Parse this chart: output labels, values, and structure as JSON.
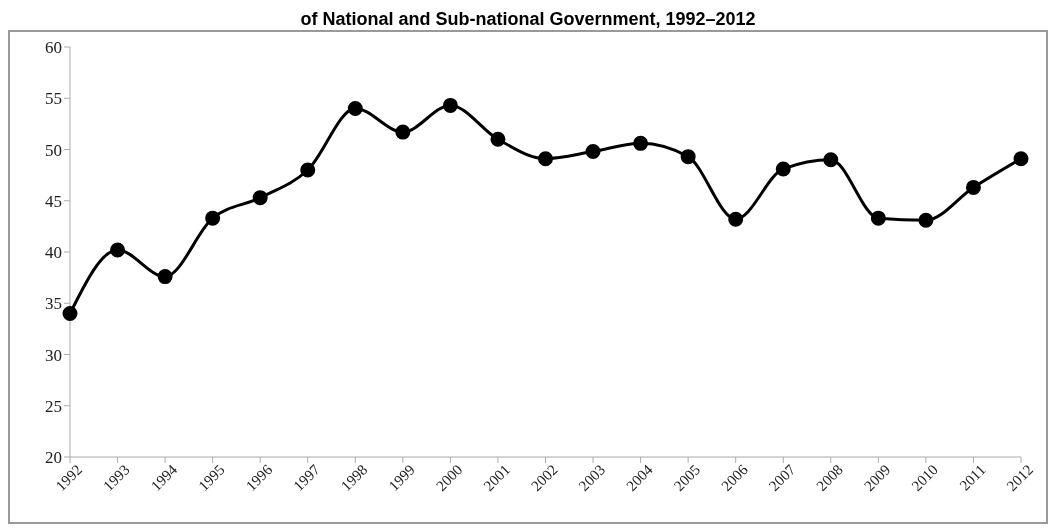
{
  "chart_data": {
    "type": "line",
    "title": "of National and Sub-national Government, 1992–2012",
    "categories": [
      "1992",
      "1993",
      "1994",
      "1995",
      "1996",
      "1997",
      "1998",
      "1999",
      "2000",
      "2001",
      "2002",
      "2003",
      "2004",
      "2005",
      "2006",
      "2007",
      "2008",
      "2009",
      "2010",
      "2011",
      "2012"
    ],
    "series": [
      {
        "color": "#000000",
        "values": [
          34.0,
          40.2,
          37.6,
          43.3,
          45.3,
          48.0,
          54.0,
          51.7,
          54.3,
          51.0,
          49.1,
          49.8,
          50.6,
          49.3,
          43.2,
          48.1,
          49.0,
          43.3,
          43.1,
          46.3,
          49.1
        ]
      }
    ],
    "ylim": [
      20,
      60
    ],
    "yticks": [
      20,
      25,
      30,
      35,
      40,
      45,
      50,
      55,
      60
    ],
    "grid": false,
    "legend": false,
    "marker": "circle",
    "line_style": "solid"
  }
}
